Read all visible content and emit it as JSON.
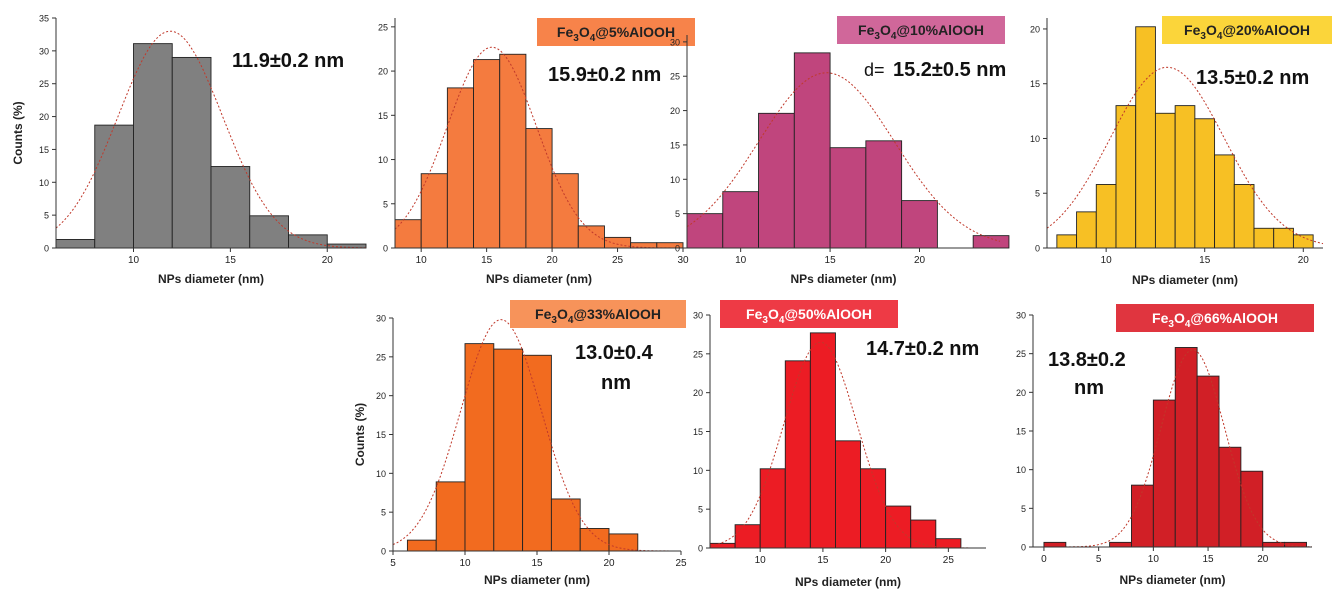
{
  "chart_data": [
    {
      "type": "bar",
      "label_main": "",
      "label_sub": "",
      "label_tail": "",
      "size_text": "11.9±0.2 nm",
      "size_lines": [],
      "bar_color": "#808080",
      "xlabel": "NPs diameter  (nm)",
      "ylabel": "Counts (%)",
      "xlim": [
        6,
        22
      ],
      "ylim": [
        0,
        35
      ],
      "xticks": [
        10,
        15,
        20
      ],
      "yticks": [
        0,
        5,
        10,
        15,
        20,
        25,
        30,
        35
      ],
      "x": [
        7,
        9,
        11,
        13,
        15,
        17,
        19,
        21
      ],
      "values": [
        1.3,
        18.7,
        31.1,
        29.0,
        12.4,
        4.9,
        2.0,
        0.6
      ],
      "fit": {
        "mean": 11.9,
        "sigma": 2.7,
        "amplitude": 33
      }
    },
    {
      "type": "bar",
      "label_main": "Fe",
      "label_sub": "3",
      "label_sub2": "4",
      "label_tail": "@5%AlOOH",
      "size_text": "15.9±0.2  nm",
      "size_lines": [],
      "bar_color": "#f47b3f",
      "label_color": "#f7834a",
      "xlabel": "NPs diameter  (nm)",
      "ylabel": "",
      "xlim": [
        8,
        30
      ],
      "ylim": [
        0,
        26
      ],
      "xticks": [
        10,
        15,
        20,
        25,
        30
      ],
      "yticks": [
        0,
        5,
        10,
        15,
        20,
        25
      ],
      "x": [
        9,
        11,
        13,
        15,
        17,
        19,
        21,
        23,
        25,
        27,
        29
      ],
      "values": [
        3.2,
        8.4,
        18.1,
        21.3,
        21.9,
        13.5,
        8.4,
        2.5,
        1.2,
        0.6,
        0.6
      ],
      "fit": {
        "mean": 15.4,
        "sigma": 3.4,
        "amplitude": 22.7
      }
    },
    {
      "type": "bar",
      "label_main": "Fe",
      "label_sub": "3",
      "label_sub2": "4",
      "label_tail": "@10%AlOOH",
      "size_text": "15.2±0.5 nm",
      "size_prefix": "d=",
      "size_lines": [],
      "bar_color": "#c0457d",
      "label_color": "#d0679a",
      "xlabel": "NPs diameter  (nm)",
      "ylabel": "",
      "xlim": [
        7,
        24.5
      ],
      "ylim": [
        0,
        31
      ],
      "xticks": [
        10,
        15,
        20
      ],
      "yticks": [
        0,
        5,
        10,
        15,
        20,
        25,
        30
      ],
      "x": [
        8,
        10,
        12,
        14,
        16,
        18,
        20,
        22,
        24
      ],
      "values": [
        5.0,
        8.2,
        19.6,
        28.4,
        14.6,
        15.6,
        6.9,
        0,
        1.8
      ],
      "fit": {
        "mean": 14.8,
        "sigma": 3.8,
        "amplitude": 25.5
      }
    },
    {
      "type": "bar",
      "label_main": "Fe",
      "label_sub": "3",
      "label_sub2": "4",
      "label_tail": "@20%AlOOH",
      "size_text": "13.5±0.2 nm",
      "size_lines": [],
      "bar_color": "#f7c024",
      "label_color": "#fbd53a",
      "xlabel": "NPs diameter  (nm)",
      "ylabel": "",
      "xlim": [
        7,
        21
      ],
      "ylim": [
        0,
        21
      ],
      "xticks": [
        10,
        15,
        20
      ],
      "yticks": [
        0,
        5,
        10,
        15,
        20
      ],
      "x": [
        8,
        9,
        10,
        11,
        12,
        13,
        14,
        15,
        16,
        17,
        18,
        19,
        20
      ],
      "values": [
        1.2,
        3.3,
        5.8,
        13.0,
        20.2,
        12.3,
        13.0,
        11.8,
        8.5,
        5.8,
        1.8,
        1.8,
        1.2
      ],
      "fit": {
        "mean": 13.1,
        "sigma": 2.9,
        "amplitude": 16.5
      }
    },
    {
      "type": "bar",
      "label_main": "Fe",
      "label_sub": "3",
      "label_sub2": "4",
      "label_tail": "@33%AlOOH",
      "size_text": "",
      "size_lines": [
        "13.0±0.4",
        "nm"
      ],
      "bar_color": "#f26b1f",
      "label_color": "#f7935a",
      "xlabel": "NPs diameter  (nm)",
      "ylabel": "Counts (%)",
      "xlim": [
        5,
        25
      ],
      "ylim": [
        0,
        30
      ],
      "xticks": [
        5,
        10,
        15,
        20,
        25
      ],
      "yticks": [
        0,
        5,
        10,
        15,
        20,
        25,
        30
      ],
      "x": [
        7,
        9,
        11,
        13,
        15,
        17,
        19,
        21
      ],
      "values": [
        1.4,
        8.9,
        26.7,
        26.0,
        25.2,
        6.7,
        2.9,
        2.2
      ],
      "fit": {
        "mean": 12.5,
        "sigma": 2.8,
        "amplitude": 29.8
      }
    },
    {
      "type": "bar",
      "label_main": "Fe",
      "label_sub": "3",
      "label_sub2": "4",
      "label_tail": "@50%AlOOH",
      "size_text": "14.7±0.2 nm",
      "size_lines": [],
      "bar_color": "#ec1c24",
      "label_color": "#ee3a45",
      "xlabel": "NPs diameter  (nm)",
      "ylabel": "",
      "xlim": [
        6,
        28
      ],
      "ylim": [
        0,
        30
      ],
      "xticks": [
        10,
        15,
        20,
        25
      ],
      "yticks": [
        0,
        5,
        10,
        15,
        20,
        25,
        30
      ],
      "x": [
        7,
        9,
        11,
        13,
        15,
        17,
        19,
        21,
        23,
        25,
        27
      ],
      "values": [
        0.6,
        3.0,
        10.2,
        24.1,
        27.7,
        13.8,
        10.2,
        5.4,
        3.6,
        1.2,
        0
      ],
      "fit": {
        "mean": 14.8,
        "sigma": 2.9,
        "amplitude": 26.5
      }
    },
    {
      "type": "bar",
      "label_main": "Fe",
      "label_sub": "3",
      "label_sub2": "4",
      "label_tail": "@66%AlOOH",
      "size_text": "",
      "size_lines": [
        "13.8±0.2",
        "nm"
      ],
      "bar_color": "#d11f26",
      "label_color": "#e0353f",
      "xlabel": "NPs diameter  (nm)",
      "ylabel": "",
      "xlim": [
        -1,
        24.5
      ],
      "ylim": [
        0,
        30
      ],
      "xticks": [
        0,
        5,
        10,
        15,
        20
      ],
      "yticks": [
        0,
        5,
        10,
        15,
        20,
        25,
        30
      ],
      "x": [
        1,
        3,
        5,
        7,
        9,
        11,
        13,
        15,
        17,
        19,
        21,
        23
      ],
      "values": [
        0.6,
        0,
        0,
        0.6,
        8.0,
        19.0,
        25.8,
        22.1,
        12.9,
        9.8,
        0.6,
        0.6
      ],
      "fit": {
        "mean": 13.6,
        "sigma": 2.9,
        "amplitude": 25.5
      }
    }
  ]
}
